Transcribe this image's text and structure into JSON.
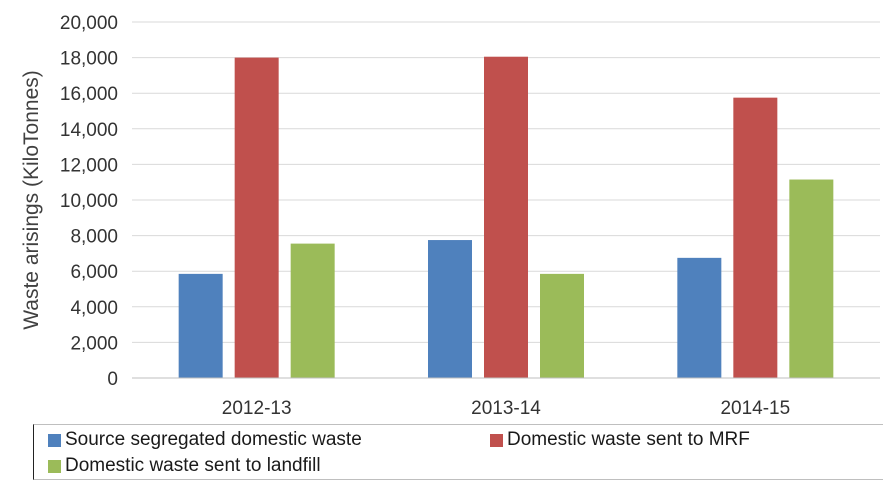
{
  "chart_data": {
    "type": "bar",
    "title": "",
    "xlabel": "",
    "ylabel": "Waste arisings (KiloTonnes)",
    "ylim": [
      0,
      20000
    ],
    "yticks": [
      "0",
      "2,000",
      "4,000",
      "6,000",
      "8,000",
      "10,000",
      "12,000",
      "14,000",
      "16,000",
      "18,000",
      "20,000"
    ],
    "categories": [
      "2012-13",
      "2013-14",
      "2014-15"
    ],
    "grid": true,
    "legend_position": "bottom",
    "series": [
      {
        "name": "Source segregated domestic waste",
        "color": "#4f81bd",
        "values": [
          5850,
          7750,
          6750
        ]
      },
      {
        "name": "Domestic waste sent to MRF",
        "color": "#c0504d",
        "values": [
          18000,
          18050,
          15750
        ]
      },
      {
        "name": "Domestic waste sent to landfill",
        "color": "#9bbb59",
        "values": [
          7550,
          5850,
          11150
        ]
      }
    ]
  }
}
